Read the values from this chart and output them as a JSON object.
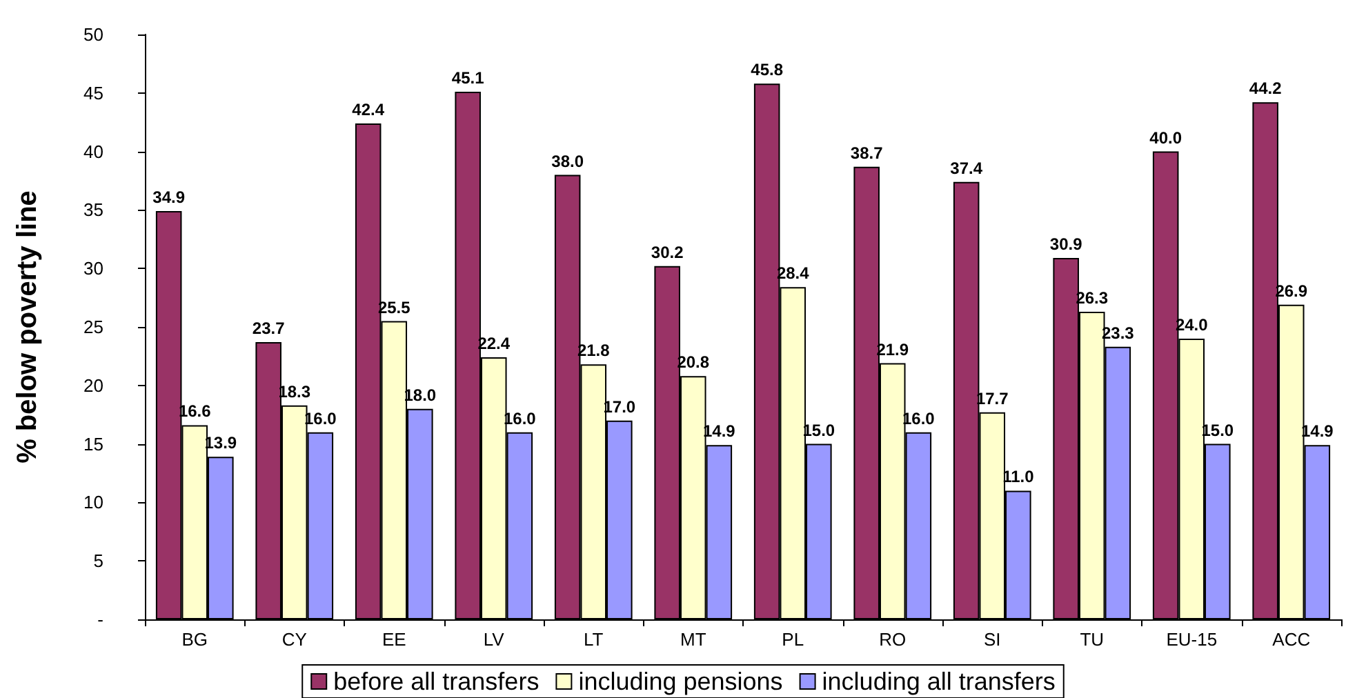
{
  "chart_data": {
    "type": "bar",
    "ylabel": "% below poverty line",
    "categories": [
      "BG",
      "CY",
      "EE",
      "LV",
      "LT",
      "MT",
      "PL",
      "RO",
      "SI",
      "TU",
      "EU-15",
      "ACC"
    ],
    "series": [
      {
        "name": "before all transfers",
        "color": "#993366",
        "values": [
          34.9,
          23.7,
          42.4,
          45.1,
          38.0,
          30.2,
          45.8,
          38.7,
          37.4,
          30.9,
          40.0,
          44.2
        ],
        "value_labels": [
          "34.9",
          "23.7",
          "42.4",
          "45.1",
          "38.0",
          "30.2",
          "45.8",
          "38.7",
          "37.4",
          "30.9",
          "40.0",
          "44.2"
        ]
      },
      {
        "name": "including pensions",
        "color": "#ffffcc",
        "values": [
          16.6,
          18.3,
          25.5,
          22.4,
          21.8,
          20.8,
          28.4,
          21.9,
          17.7,
          26.3,
          24.0,
          26.9
        ],
        "value_labels": [
          "16.6",
          "18.3",
          "25.5",
          "22.4",
          "21.8",
          "20.8",
          "28.4",
          "21.9",
          "17.7",
          "26.3",
          "24.0",
          "26.9"
        ]
      },
      {
        "name": "including all transfers",
        "color": "#9999ff",
        "values": [
          13.9,
          16.0,
          18.0,
          16.0,
          17.0,
          14.9,
          15.0,
          16.0,
          11.0,
          23.3,
          15.0,
          14.9
        ],
        "value_labels": [
          "13.9",
          "16.0",
          "18.0",
          "16.0",
          "17.0",
          "14.9",
          "15.0",
          "16.0",
          "11.0",
          "23.3",
          "15.0",
          "14.9"
        ]
      }
    ],
    "ylim": [
      0,
      50
    ],
    "yticks": [
      {
        "value": 0,
        "label": "-"
      },
      5,
      10,
      15,
      20,
      25,
      30,
      35,
      40,
      45,
      50
    ],
    "grid": false,
    "legend": "bottom"
  }
}
